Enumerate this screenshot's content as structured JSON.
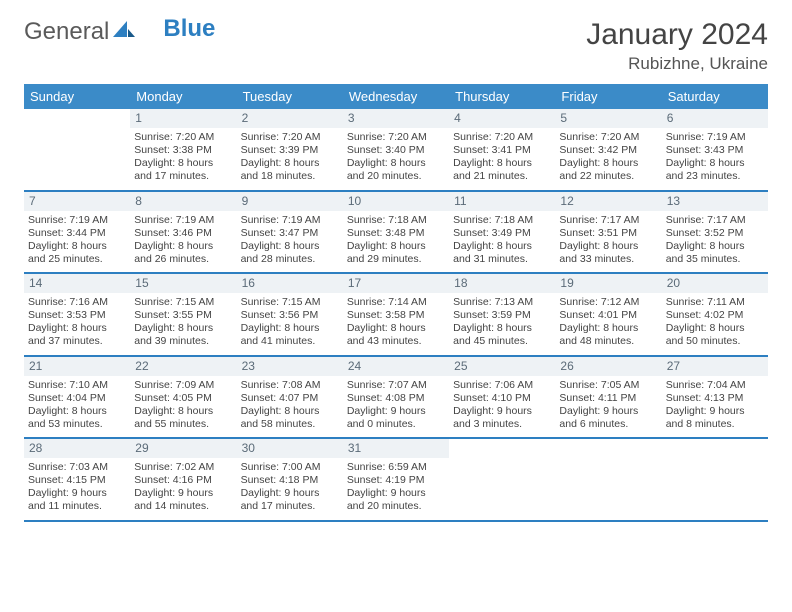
{
  "brand": {
    "part1": "General",
    "part2": "Blue"
  },
  "title": "January 2024",
  "location": "Rubizhne, Ukraine",
  "colors": {
    "header_bg": "#3b8bc8",
    "header_text": "#ffffff",
    "daynum_bg": "#eef2f5",
    "daynum_text": "#5b6b78",
    "border": "#2d7fc1",
    "text": "#444444"
  },
  "dayNames": [
    "Sunday",
    "Monday",
    "Tuesday",
    "Wednesday",
    "Thursday",
    "Friday",
    "Saturday"
  ],
  "weeks": [
    [
      {
        "n": "",
        "empty": true
      },
      {
        "n": "1",
        "sunrise": "Sunrise: 7:20 AM",
        "sunset": "Sunset: 3:38 PM",
        "daylight": "Daylight: 8 hours and 17 minutes."
      },
      {
        "n": "2",
        "sunrise": "Sunrise: 7:20 AM",
        "sunset": "Sunset: 3:39 PM",
        "daylight": "Daylight: 8 hours and 18 minutes."
      },
      {
        "n": "3",
        "sunrise": "Sunrise: 7:20 AM",
        "sunset": "Sunset: 3:40 PM",
        "daylight": "Daylight: 8 hours and 20 minutes."
      },
      {
        "n": "4",
        "sunrise": "Sunrise: 7:20 AM",
        "sunset": "Sunset: 3:41 PM",
        "daylight": "Daylight: 8 hours and 21 minutes."
      },
      {
        "n": "5",
        "sunrise": "Sunrise: 7:20 AM",
        "sunset": "Sunset: 3:42 PM",
        "daylight": "Daylight: 8 hours and 22 minutes."
      },
      {
        "n": "6",
        "sunrise": "Sunrise: 7:19 AM",
        "sunset": "Sunset: 3:43 PM",
        "daylight": "Daylight: 8 hours and 23 minutes."
      }
    ],
    [
      {
        "n": "7",
        "sunrise": "Sunrise: 7:19 AM",
        "sunset": "Sunset: 3:44 PM",
        "daylight": "Daylight: 8 hours and 25 minutes."
      },
      {
        "n": "8",
        "sunrise": "Sunrise: 7:19 AM",
        "sunset": "Sunset: 3:46 PM",
        "daylight": "Daylight: 8 hours and 26 minutes."
      },
      {
        "n": "9",
        "sunrise": "Sunrise: 7:19 AM",
        "sunset": "Sunset: 3:47 PM",
        "daylight": "Daylight: 8 hours and 28 minutes."
      },
      {
        "n": "10",
        "sunrise": "Sunrise: 7:18 AM",
        "sunset": "Sunset: 3:48 PM",
        "daylight": "Daylight: 8 hours and 29 minutes."
      },
      {
        "n": "11",
        "sunrise": "Sunrise: 7:18 AM",
        "sunset": "Sunset: 3:49 PM",
        "daylight": "Daylight: 8 hours and 31 minutes."
      },
      {
        "n": "12",
        "sunrise": "Sunrise: 7:17 AM",
        "sunset": "Sunset: 3:51 PM",
        "daylight": "Daylight: 8 hours and 33 minutes."
      },
      {
        "n": "13",
        "sunrise": "Sunrise: 7:17 AM",
        "sunset": "Sunset: 3:52 PM",
        "daylight": "Daylight: 8 hours and 35 minutes."
      }
    ],
    [
      {
        "n": "14",
        "sunrise": "Sunrise: 7:16 AM",
        "sunset": "Sunset: 3:53 PM",
        "daylight": "Daylight: 8 hours and 37 minutes."
      },
      {
        "n": "15",
        "sunrise": "Sunrise: 7:15 AM",
        "sunset": "Sunset: 3:55 PM",
        "daylight": "Daylight: 8 hours and 39 minutes."
      },
      {
        "n": "16",
        "sunrise": "Sunrise: 7:15 AM",
        "sunset": "Sunset: 3:56 PM",
        "daylight": "Daylight: 8 hours and 41 minutes."
      },
      {
        "n": "17",
        "sunrise": "Sunrise: 7:14 AM",
        "sunset": "Sunset: 3:58 PM",
        "daylight": "Daylight: 8 hours and 43 minutes."
      },
      {
        "n": "18",
        "sunrise": "Sunrise: 7:13 AM",
        "sunset": "Sunset: 3:59 PM",
        "daylight": "Daylight: 8 hours and 45 minutes."
      },
      {
        "n": "19",
        "sunrise": "Sunrise: 7:12 AM",
        "sunset": "Sunset: 4:01 PM",
        "daylight": "Daylight: 8 hours and 48 minutes."
      },
      {
        "n": "20",
        "sunrise": "Sunrise: 7:11 AM",
        "sunset": "Sunset: 4:02 PM",
        "daylight": "Daylight: 8 hours and 50 minutes."
      }
    ],
    [
      {
        "n": "21",
        "sunrise": "Sunrise: 7:10 AM",
        "sunset": "Sunset: 4:04 PM",
        "daylight": "Daylight: 8 hours and 53 minutes."
      },
      {
        "n": "22",
        "sunrise": "Sunrise: 7:09 AM",
        "sunset": "Sunset: 4:05 PM",
        "daylight": "Daylight: 8 hours and 55 minutes."
      },
      {
        "n": "23",
        "sunrise": "Sunrise: 7:08 AM",
        "sunset": "Sunset: 4:07 PM",
        "daylight": "Daylight: 8 hours and 58 minutes."
      },
      {
        "n": "24",
        "sunrise": "Sunrise: 7:07 AM",
        "sunset": "Sunset: 4:08 PM",
        "daylight": "Daylight: 9 hours and 0 minutes."
      },
      {
        "n": "25",
        "sunrise": "Sunrise: 7:06 AM",
        "sunset": "Sunset: 4:10 PM",
        "daylight": "Daylight: 9 hours and 3 minutes."
      },
      {
        "n": "26",
        "sunrise": "Sunrise: 7:05 AM",
        "sunset": "Sunset: 4:11 PM",
        "daylight": "Daylight: 9 hours and 6 minutes."
      },
      {
        "n": "27",
        "sunrise": "Sunrise: 7:04 AM",
        "sunset": "Sunset: 4:13 PM",
        "daylight": "Daylight: 9 hours and 8 minutes."
      }
    ],
    [
      {
        "n": "28",
        "sunrise": "Sunrise: 7:03 AM",
        "sunset": "Sunset: 4:15 PM",
        "daylight": "Daylight: 9 hours and 11 minutes."
      },
      {
        "n": "29",
        "sunrise": "Sunrise: 7:02 AM",
        "sunset": "Sunset: 4:16 PM",
        "daylight": "Daylight: 9 hours and 14 minutes."
      },
      {
        "n": "30",
        "sunrise": "Sunrise: 7:00 AM",
        "sunset": "Sunset: 4:18 PM",
        "daylight": "Daylight: 9 hours and 17 minutes."
      },
      {
        "n": "31",
        "sunrise": "Sunrise: 6:59 AM",
        "sunset": "Sunset: 4:19 PM",
        "daylight": "Daylight: 9 hours and 20 minutes."
      },
      {
        "n": "",
        "empty": true
      },
      {
        "n": "",
        "empty": true
      },
      {
        "n": "",
        "empty": true
      }
    ]
  ]
}
